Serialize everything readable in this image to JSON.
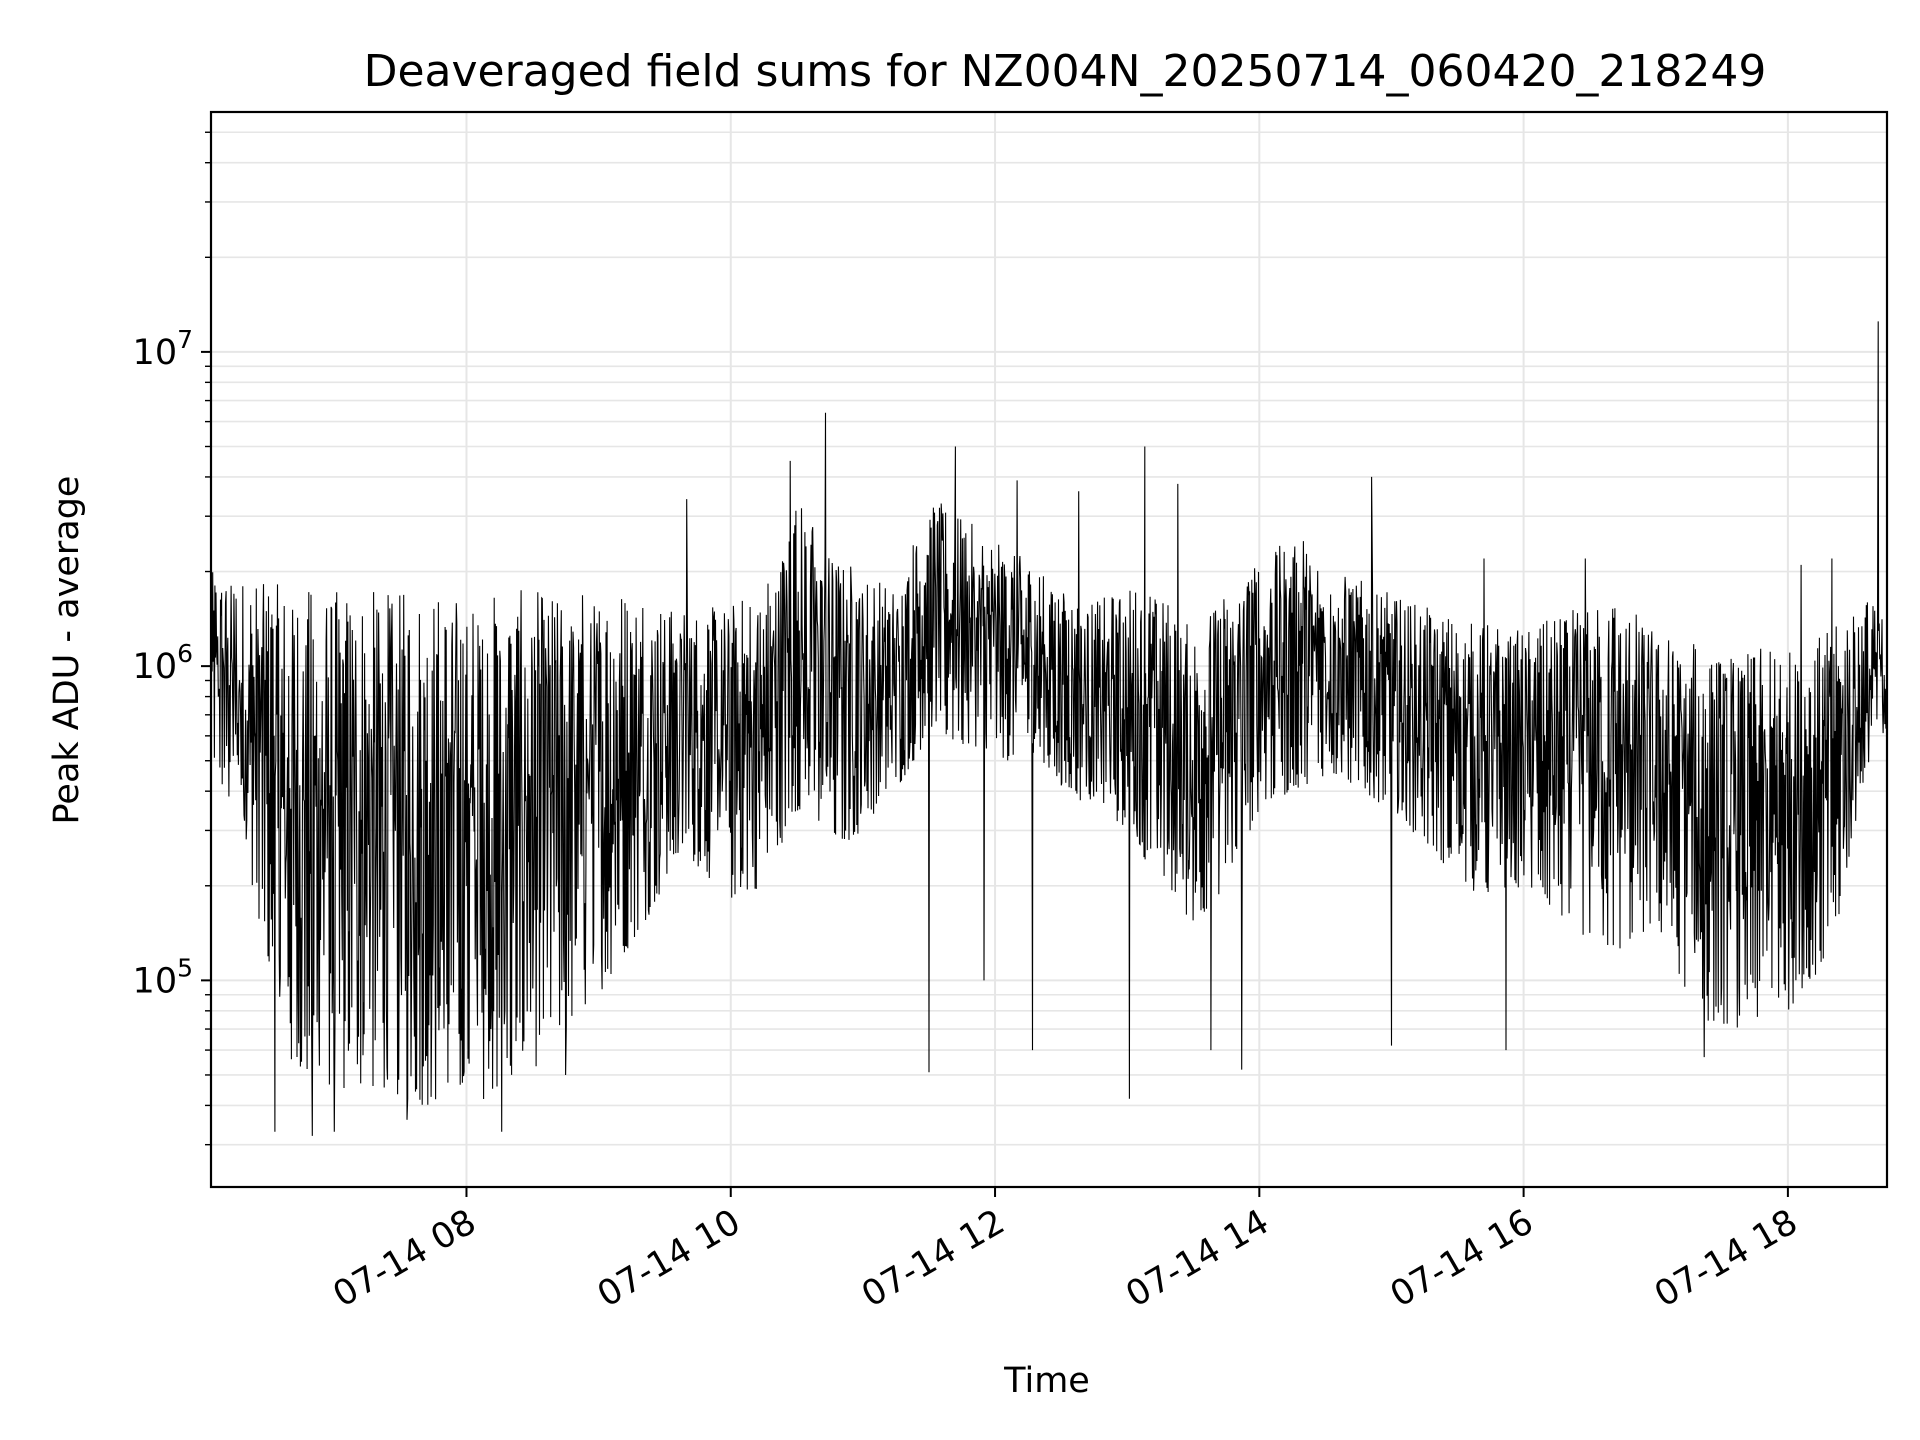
{
  "chart_data": {
    "type": "line",
    "title": "Deaveraged field sums for NZ004N_20250714_060420_218249",
    "xlabel": "Time",
    "ylabel": "Peak ADU - average",
    "y_scale": "log",
    "x_is_time": true,
    "xlim": [
      "2025-07-14 06:04",
      "2025-07-14 18:45"
    ],
    "ylim": [
      22000,
      58000000
    ],
    "grid": true,
    "line_color": "#000000",
    "grid_color": "#e6e6e6",
    "x_ticks": [
      {
        "time": "2025-07-14 08:00",
        "label": "07-14 08"
      },
      {
        "time": "2025-07-14 10:00",
        "label": "07-14 10"
      },
      {
        "time": "2025-07-14 12:00",
        "label": "07-14 12"
      },
      {
        "time": "2025-07-14 14:00",
        "label": "07-14 14"
      },
      {
        "time": "2025-07-14 16:00",
        "label": "07-14 16"
      },
      {
        "time": "2025-07-14 18:00",
        "label": "07-14 18"
      }
    ],
    "y_ticks": [
      {
        "value": 100000,
        "base": "10",
        "exp": "5"
      },
      {
        "value": 1000000,
        "base": "10",
        "exp": "6"
      },
      {
        "value": 10000000,
        "base": "10",
        "exp": "7"
      }
    ],
    "envelope": {
      "description_note": "",
      "times": [
        "06:04",
        "06:20",
        "06:40",
        "07:00",
        "07:20",
        "07:40",
        "08:00",
        "08:20",
        "08:40",
        "09:00",
        "09:20",
        "09:40",
        "10:00",
        "10:15",
        "10:30",
        "10:45",
        "11:00",
        "11:15",
        "11:30",
        "11:45",
        "12:00",
        "12:15",
        "12:30",
        "12:45",
        "13:00",
        "13:15",
        "13:30",
        "13:45",
        "14:00",
        "14:15",
        "14:30",
        "14:45",
        "15:00",
        "15:20",
        "15:40",
        "16:00",
        "16:20",
        "16:40",
        "17:00",
        "17:20",
        "17:40",
        "18:00",
        "18:20",
        "18:35",
        "18:45"
      ],
      "upper": [
        2000000,
        1900000,
        1800000,
        1750000,
        1750000,
        1750000,
        1700000,
        1750000,
        1750000,
        1800000,
        1800000,
        1500000,
        1600000,
        1800000,
        3500000,
        2500000,
        2000000,
        1800000,
        3500000,
        3000000,
        2500000,
        2200000,
        1800000,
        1600000,
        1800000,
        1800000,
        1300000,
        1800000,
        2300000,
        2500000,
        2200000,
        1900000,
        1700000,
        1500000,
        1400000,
        1300000,
        1500000,
        1800000,
        1300000,
        1200000,
        1100000,
        1200000,
        1300000,
        1700000,
        1400000
      ],
      "lower": [
        500000,
        250000,
        50000,
        45000,
        45000,
        40000,
        40000,
        45000,
        60000,
        90000,
        150000,
        250000,
        180000,
        200000,
        350000,
        250000,
        300000,
        400000,
        600000,
        550000,
        500000,
        500000,
        400000,
        350000,
        300000,
        200000,
        150000,
        200000,
        350000,
        400000,
        450000,
        400000,
        350000,
        250000,
        180000,
        200000,
        150000,
        120000,
        150000,
        75000,
        70000,
        80000,
        120000,
        400000,
        600000
      ]
    },
    "spikes": [
      {
        "time": "06:33",
        "value": 33000
      },
      {
        "time": "06:50",
        "value": 32000
      },
      {
        "time": "07:00",
        "value": 33000
      },
      {
        "time": "07:33",
        "value": 36000
      },
      {
        "time": "08:16",
        "value": 33000
      },
      {
        "time": "08:45",
        "value": 50000
      },
      {
        "time": "09:40",
        "value": 3400000
      },
      {
        "time": "10:43",
        "value": 6400000
      },
      {
        "time": "10:27",
        "value": 4500000
      },
      {
        "time": "11:30",
        "value": 51000
      },
      {
        "time": "11:42",
        "value": 5000000
      },
      {
        "time": "11:55",
        "value": 100000
      },
      {
        "time": "12:10",
        "value": 3900000
      },
      {
        "time": "12:17",
        "value": 60000
      },
      {
        "time": "12:38",
        "value": 3600000
      },
      {
        "time": "13:01",
        "value": 42000
      },
      {
        "time": "13:08",
        "value": 5000000
      },
      {
        "time": "13:23",
        "value": 3800000
      },
      {
        "time": "13:38",
        "value": 60000
      },
      {
        "time": "13:52",
        "value": 52000
      },
      {
        "time": "14:20",
        "value": 2500000
      },
      {
        "time": "14:51",
        "value": 4000000
      },
      {
        "time": "15:00",
        "value": 62000
      },
      {
        "time": "15:42",
        "value": 2200000
      },
      {
        "time": "15:52",
        "value": 60000
      },
      {
        "time": "16:28",
        "value": 2200000
      },
      {
        "time": "17:22",
        "value": 57000
      },
      {
        "time": "18:06",
        "value": 2100000
      },
      {
        "time": "18:20",
        "value": 2200000
      },
      {
        "time": "18:41",
        "value": 12500000
      }
    ]
  }
}
